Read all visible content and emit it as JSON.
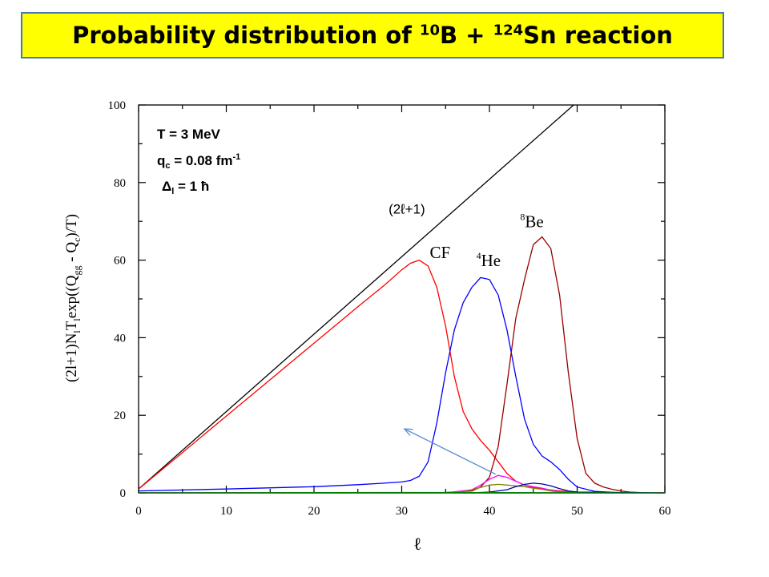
{
  "title": {
    "prefix": "Probability distribution of ",
    "sup1": "10",
    "mid": "B + ",
    "sup2": "124",
    "suffix": "Sn reaction"
  },
  "params": {
    "temperature": "T = 3 MeV",
    "qc_main": "q",
    "qc_sub": "c",
    "qc_value": " = 0.08 fm",
    "qc_exp": "-1",
    "delta_sym": "Δ",
    "delta_sub": "l",
    "delta_value": " = 1 ħ"
  },
  "chart_data": {
    "type": "line",
    "xlabel": "ℓ",
    "ylabel_parts": [
      "(2l+1)N",
      "l",
      "T",
      "l",
      "exp((Q",
      "gg",
      " - Q",
      "c",
      ")/T)"
    ],
    "xlim": [
      0,
      60
    ],
    "ylim": [
      0,
      100
    ],
    "xticks": [
      0,
      10,
      20,
      30,
      40,
      50,
      60
    ],
    "yticks": [
      0,
      20,
      40,
      60,
      80,
      100
    ],
    "grid": false,
    "annotations": [
      {
        "text": "(2ℓ+1)",
        "x": 28.5,
        "y": 72,
        "font": "sans"
      },
      {
        "text": "CF",
        "x": 33.2,
        "y": 60.5,
        "font": "serif"
      },
      {
        "text": "He",
        "sup": "4",
        "x": 38.5,
        "y": 58.5,
        "font": "serif"
      },
      {
        "text": "Be",
        "sup": "8",
        "x": 43.5,
        "y": 68.5,
        "font": "serif"
      }
    ],
    "arrow": {
      "from": [
        40.7,
        4.8
      ],
      "to": [
        30.3,
        16.5
      ],
      "color": "#5b8fd0"
    },
    "series": [
      {
        "color": "#000000",
        "x": [
          0,
          49.6
        ],
        "y": [
          1,
          100
        ]
      },
      {
        "color": "#ff0000",
        "x": [
          0,
          5,
          10,
          15,
          20,
          25,
          28,
          30,
          31,
          32,
          33,
          34,
          35,
          36,
          37,
          38,
          39,
          40,
          41,
          42,
          43,
          44,
          45,
          46,
          48,
          50,
          55,
          60
        ],
        "y": [
          1,
          10.4,
          19.8,
          29.2,
          38.6,
          48,
          53.5,
          57.5,
          59.2,
          60,
          58.5,
          53,
          43,
          30,
          21,
          16.5,
          13.5,
          11,
          8,
          5,
          3,
          2,
          1.4,
          1,
          0.5,
          0.2,
          0,
          0
        ]
      },
      {
        "color": "#0000ff",
        "x": [
          0,
          10,
          20,
          25,
          28,
          30,
          31,
          32,
          33,
          34,
          35,
          36,
          37,
          38,
          39,
          40,
          41,
          42,
          43,
          44,
          45,
          46,
          47,
          48,
          49,
          50,
          52,
          55,
          60
        ],
        "y": [
          0.5,
          1,
          1.6,
          2.1,
          2.5,
          2.8,
          3.2,
          4.3,
          8,
          18,
          31,
          42,
          49,
          53,
          55.5,
          55,
          51,
          42,
          30,
          19,
          12.5,
          9.5,
          8,
          6,
          3.5,
          1.5,
          0.4,
          0,
          0
        ]
      },
      {
        "color": "#990000",
        "x": [
          0,
          30,
          35,
          38,
          39,
          40,
          41,
          42,
          43,
          44,
          45,
          46,
          47,
          48,
          49,
          50,
          51,
          52,
          53,
          54,
          55,
          56,
          58,
          60
        ],
        "y": [
          0,
          0,
          0.1,
          0.5,
          1.5,
          4,
          12,
          28,
          45,
          55,
          64,
          66,
          63,
          51,
          31,
          14,
          5,
          2.5,
          1.5,
          0.9,
          0.5,
          0.2,
          0,
          0
        ]
      },
      {
        "color": "#ff00ff",
        "x": [
          0,
          35,
          38,
          39,
          40,
          41,
          42,
          43,
          44,
          45,
          46,
          47,
          48,
          50,
          60
        ],
        "y": [
          0,
          0,
          0.8,
          2,
          3.5,
          4.5,
          4,
          3,
          2,
          1.6,
          1.2,
          0.7,
          0.3,
          0,
          0
        ]
      },
      {
        "color": "#808000",
        "x": [
          0,
          35,
          37,
          38,
          39,
          40,
          41,
          42,
          43,
          44,
          45,
          46,
          47,
          48,
          50,
          60
        ],
        "y": [
          0,
          0,
          0.3,
          0.8,
          1.4,
          2,
          2.2,
          2,
          1.8,
          1.6,
          1.2,
          0.9,
          0.5,
          0.2,
          0,
          0
        ]
      },
      {
        "color": "#0000aa",
        "x": [
          0,
          38,
          40,
          42,
          43,
          44,
          45,
          46,
          47,
          48,
          49,
          50,
          60
        ],
        "y": [
          0,
          0,
          0.2,
          0.8,
          1.6,
          2.2,
          2.5,
          2.3,
          1.8,
          1.1,
          0.5,
          0.2,
          0
        ]
      },
      {
        "color": "#008000",
        "x": [
          0,
          30,
          60
        ],
        "y": [
          0,
          0.1,
          0
        ]
      }
    ]
  }
}
